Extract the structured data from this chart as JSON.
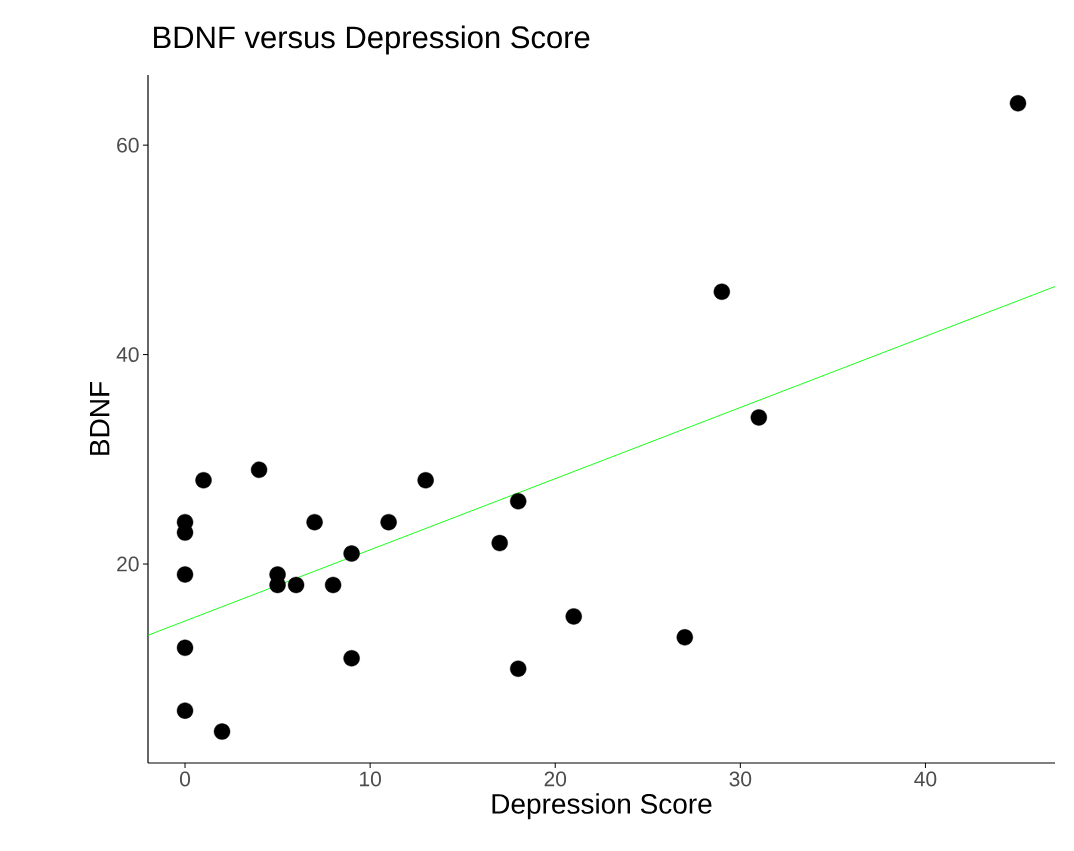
{
  "chart_data": {
    "type": "scatter",
    "title": "BDNF versus Depression Score",
    "xlabel": "Depression Score",
    "ylabel": "BDNF",
    "xlim": [
      -2,
      47
    ],
    "ylim": [
      1,
      66.7
    ],
    "xticks": [
      0,
      10,
      20,
      30,
      40
    ],
    "yticks": [
      20,
      40,
      60
    ],
    "marker": "circle",
    "series": [
      {
        "color": "#000000",
        "x": [
          0,
          0,
          0,
          0,
          0,
          1,
          2,
          4,
          5,
          5,
          6,
          7,
          8,
          9,
          9,
          11,
          13,
          17,
          18,
          18,
          21,
          27,
          29,
          31,
          45
        ],
        "values": [
          24,
          23,
          19,
          12,
          6,
          28,
          4,
          29,
          19,
          18,
          18,
          24,
          18,
          21,
          11,
          24,
          28,
          22,
          26,
          10,
          15,
          13,
          46,
          34,
          64
        ]
      },
      {
        "type": "line",
        "color": "#00ff00",
        "marker": "none",
        "x": [
          -2,
          47
        ],
        "values": [
          13.2,
          46.5
        ]
      }
    ]
  }
}
